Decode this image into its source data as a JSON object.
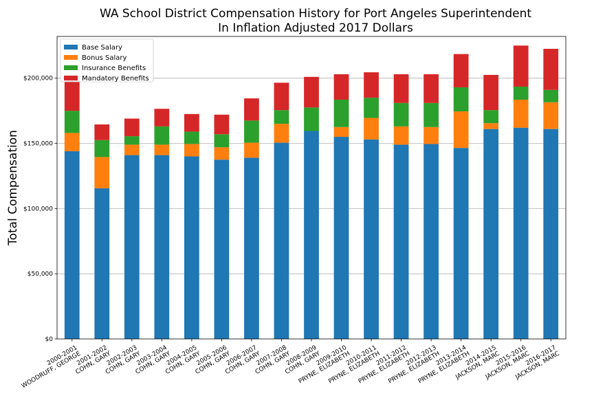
{
  "chart_data": {
    "type": "bar",
    "stacked": true,
    "title": "WA School District Compensation History for Port Angeles Superintendent",
    "subtitle": "In Inflation Adjusted 2017 Dollars",
    "xlabel": "",
    "ylabel": "Total Compensation",
    "ylim": [
      0,
      232000
    ],
    "yticks": [
      0,
      50000,
      100000,
      150000,
      200000
    ],
    "ytick_labels": [
      "$0",
      "$50,000",
      "$100,000",
      "$150,000",
      "$200,000"
    ],
    "grid": "y",
    "legend_position": "top-left",
    "categories": [
      [
        "2000-2001",
        "WOODRUFF, GEORGE"
      ],
      [
        "2001-2002",
        "COHN, GARY"
      ],
      [
        "2002-2003",
        "COHN, GARY"
      ],
      [
        "2003-2004",
        "COHN, GARY"
      ],
      [
        "2004-2005",
        "COHN, GARY"
      ],
      [
        "2005-2006",
        "COHN, GARY"
      ],
      [
        "2006-2007",
        "COHN, GARY"
      ],
      [
        "2007-2008",
        "COHN, GARY"
      ],
      [
        "2008-2009",
        "COHN, GARY"
      ],
      [
        "2009-2010",
        "PRYNE, ELIZABETH"
      ],
      [
        "2010-2011",
        "PRYNE, ELIZABETH"
      ],
      [
        "2011-2012",
        "PRYNE, ELIZABETH"
      ],
      [
        "2012-2013",
        "PRYNE, ELIZABETH"
      ],
      [
        "2013-2014",
        "PRYNE, ELIZABETH"
      ],
      [
        "2014-2015",
        "JACKSON, MARC"
      ],
      [
        "2015-2016",
        "JACKSON, MARC"
      ],
      [
        "2016-2017",
        "JACKSON, MARC"
      ]
    ],
    "series": [
      {
        "name": "Base Salary",
        "color": "#1f77b4",
        "values": [
          144000,
          115500,
          141000,
          141000,
          140000,
          137500,
          139000,
          150500,
          159500,
          155000,
          153000,
          149000,
          149500,
          146500,
          161000,
          162000,
          161000
        ]
      },
      {
        "name": "Bonus Salary",
        "color": "#ff7f0e",
        "values": [
          14000,
          24000,
          8000,
          8000,
          9500,
          9500,
          11500,
          14500,
          0,
          7500,
          16500,
          14000,
          13000,
          28000,
          4500,
          21500,
          20500
        ]
      },
      {
        "name": "Insurance Benefits",
        "color": "#2ca02c",
        "values": [
          17000,
          13000,
          6500,
          14000,
          9500,
          10000,
          17000,
          10500,
          18000,
          21000,
          15500,
          18000,
          18500,
          18500,
          10000,
          10000,
          9500
        ]
      },
      {
        "name": "Mandatory Benefits",
        "color": "#d62728",
        "values": [
          23000,
          12000,
          13500,
          13500,
          13500,
          15000,
          17000,
          21000,
          23500,
          19500,
          19500,
          22000,
          22000,
          25500,
          27000,
          31500,
          31500
        ]
      }
    ]
  }
}
